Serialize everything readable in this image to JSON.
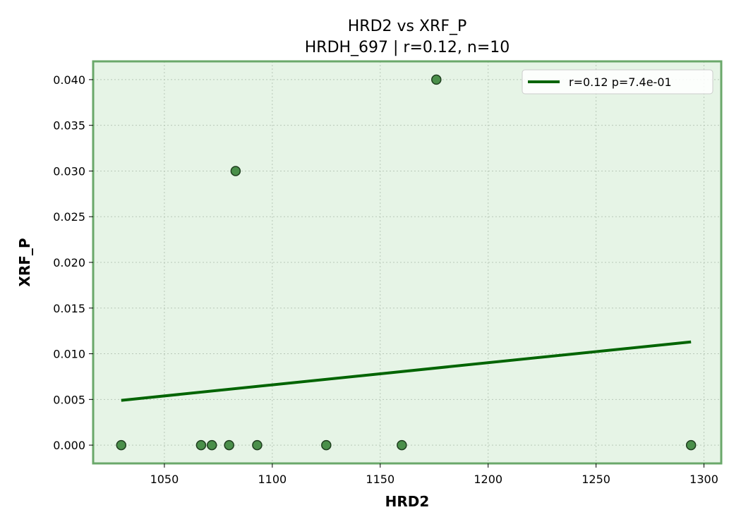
{
  "chart_data": {
    "type": "scatter",
    "title": "HRD2 vs XRF_P",
    "subtitle": "HRDH_697 | r=0.12, n=10",
    "xlabel": "HRD2",
    "ylabel": "XRF_P",
    "xlim": [
      1017,
      1308
    ],
    "ylim": [
      -0.002,
      0.042
    ],
    "xticks": [
      1050,
      1100,
      1150,
      1200,
      1250,
      1300
    ],
    "yticks": [
      0.0,
      0.005,
      0.01,
      0.015,
      0.02,
      0.025,
      0.03,
      0.035,
      0.04
    ],
    "ytick_labels": [
      "0.000",
      "0.005",
      "0.010",
      "0.015",
      "0.020",
      "0.025",
      "0.030",
      "0.035",
      "0.040"
    ],
    "grid": true,
    "legend_position": "top-right",
    "points": [
      {
        "x": 1030,
        "y": 0.0
      },
      {
        "x": 1067,
        "y": 0.0
      },
      {
        "x": 1072,
        "y": 0.0
      },
      {
        "x": 1080,
        "y": 0.0
      },
      {
        "x": 1083,
        "y": 0.03
      },
      {
        "x": 1093,
        "y": 0.0
      },
      {
        "x": 1125,
        "y": 0.0
      },
      {
        "x": 1160,
        "y": 0.0
      },
      {
        "x": 1176,
        "y": 0.04
      },
      {
        "x": 1294,
        "y": 0.0
      }
    ],
    "fit_line": {
      "label": "r=0.12  p=7.4e-01",
      "x": [
        1030,
        1294
      ],
      "y": [
        0.0049,
        0.0113
      ]
    },
    "colors": {
      "plot_bg": "#e6f4e6",
      "frame": "#6aa86a",
      "marker_fill": "#4a8f4a",
      "marker_edge": "#1e3d1e",
      "fit_line": "#006400"
    }
  }
}
